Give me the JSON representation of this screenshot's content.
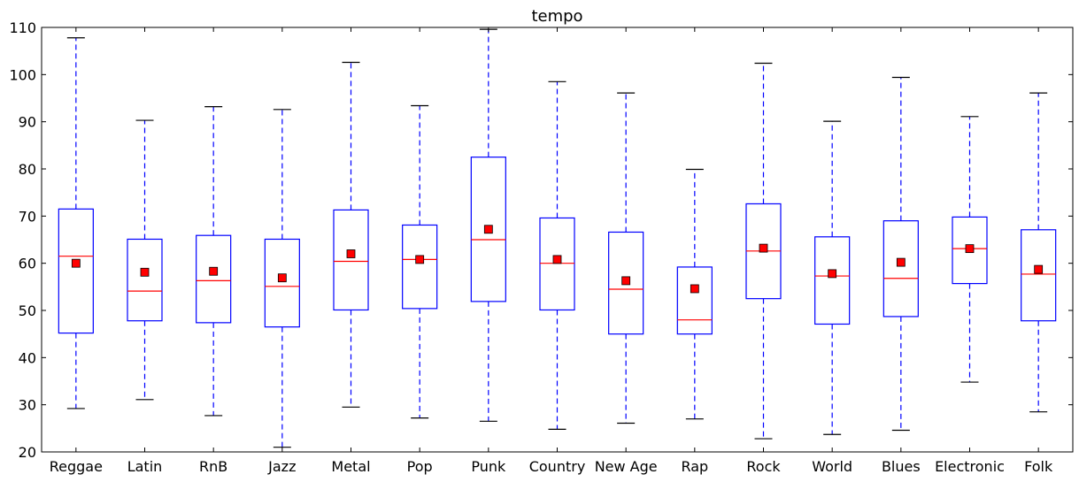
{
  "chart_data": {
    "type": "box",
    "title": "tempo",
    "xlabel": "",
    "ylabel": "",
    "ylim": [
      20,
      110
    ],
    "yticks": [
      20,
      30,
      40,
      50,
      60,
      70,
      80,
      90,
      100,
      110
    ],
    "grid": false,
    "colors": {
      "box": "#0000ff",
      "whisker": "#0000ff",
      "cap": "#000000",
      "median": "#ff0000",
      "mean_marker": "#ff0000",
      "mean_edge": "#000000"
    },
    "categories": [
      "Reggae",
      "Latin",
      "RnB",
      "Jazz",
      "Metal",
      "Pop",
      "Punk",
      "Country",
      "New Age",
      "Rap",
      "Rock",
      "World",
      "Blues",
      "Electronic",
      "Folk"
    ],
    "boxes": [
      {
        "whislo": 29.2,
        "q1": 45.2,
        "med": 61.5,
        "mean": 60.0,
        "q3": 71.5,
        "whishi": 107.8
      },
      {
        "whislo": 31.1,
        "q1": 47.8,
        "med": 54.1,
        "mean": 58.1,
        "q3": 65.1,
        "whishi": 90.3
      },
      {
        "whislo": 27.7,
        "q1": 47.4,
        "med": 56.3,
        "mean": 58.3,
        "q3": 65.9,
        "whishi": 93.2
      },
      {
        "whislo": 21.0,
        "q1": 46.5,
        "med": 55.1,
        "mean": 56.9,
        "q3": 65.1,
        "whishi": 92.6
      },
      {
        "whislo": 29.5,
        "q1": 50.1,
        "med": 60.4,
        "mean": 62.0,
        "q3": 71.3,
        "whishi": 102.6
      },
      {
        "whislo": 27.2,
        "q1": 50.4,
        "med": 60.8,
        "mean": 60.8,
        "q3": 68.1,
        "whishi": 93.4
      },
      {
        "whislo": 26.5,
        "q1": 51.9,
        "med": 65.0,
        "mean": 67.2,
        "q3": 82.5,
        "whishi": 109.6
      },
      {
        "whislo": 24.8,
        "q1": 50.1,
        "med": 60.0,
        "mean": 60.8,
        "q3": 69.6,
        "whishi": 98.5
      },
      {
        "whislo": 26.1,
        "q1": 45.0,
        "med": 54.5,
        "mean": 56.3,
        "q3": 66.6,
        "whishi": 96.1
      },
      {
        "whislo": 27.0,
        "q1": 45.0,
        "med": 48.0,
        "mean": 54.6,
        "q3": 59.2,
        "whishi": 79.9
      },
      {
        "whislo": 22.8,
        "q1": 52.5,
        "med": 62.6,
        "mean": 63.2,
        "q3": 72.6,
        "whishi": 102.4
      },
      {
        "whislo": 23.7,
        "q1": 47.1,
        "med": 57.3,
        "mean": 57.8,
        "q3": 65.6,
        "whishi": 90.1
      },
      {
        "whislo": 24.6,
        "q1": 48.7,
        "med": 56.8,
        "mean": 60.2,
        "q3": 69.0,
        "whishi": 99.4
      },
      {
        "whislo": 34.8,
        "q1": 55.7,
        "med": 63.1,
        "mean": 63.1,
        "q3": 69.8,
        "whishi": 91.1
      },
      {
        "whislo": 28.5,
        "q1": 47.8,
        "med": 57.7,
        "mean": 58.7,
        "q3": 67.1,
        "whishi": 96.1
      }
    ]
  }
}
